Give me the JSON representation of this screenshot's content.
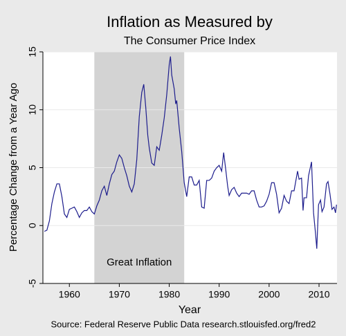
{
  "chart_data": {
    "type": "line",
    "title": "Inflation as Measured by",
    "subtitle": "The Consumer Price Index",
    "x_label": "Year",
    "y_label": "Percentage Change from a Year Ago",
    "source": "Source: Federal Reserve Public Data research.stlouisfed.org/fred2",
    "shaded": {
      "x": [
        1965,
        1983
      ],
      "label": "Great Inflation",
      "color": "#d3d3d3"
    },
    "xlim": [
      1954.7,
      2013.6
    ],
    "xticks": [
      1960,
      1970,
      1980,
      1990,
      2000,
      2010
    ],
    "ylim": [
      -5,
      15
    ],
    "yticks": [
      -5,
      0,
      5,
      10,
      15
    ],
    "grid": true,
    "x": [
      1955.0,
      1955.5,
      1956.0,
      1956.5,
      1957.0,
      1957.5,
      1958.0,
      1958.5,
      1959.0,
      1959.5,
      1960.0,
      1960.5,
      1961.0,
      1961.5,
      1962.0,
      1962.5,
      1963.0,
      1963.5,
      1964.0,
      1964.5,
      1965.0,
      1965.5,
      1966.0,
      1966.5,
      1967.0,
      1967.5,
      1968.0,
      1968.5,
      1969.0,
      1969.5,
      1970.0,
      1970.5,
      1971.0,
      1971.5,
      1972.0,
      1972.5,
      1973.0,
      1973.5,
      1974.0,
      1974.5,
      1974.9,
      1975.3,
      1975.7,
      1976.0,
      1976.5,
      1977.0,
      1977.5,
      1978.0,
      1978.5,
      1979.0,
      1979.5,
      1980.0,
      1980.25,
      1980.5,
      1981.0,
      1981.3,
      1981.5,
      1982.0,
      1982.5,
      1983.0,
      1983.5,
      1984.0,
      1984.5,
      1985.0,
      1985.5,
      1986.0,
      1986.5,
      1987.0,
      1987.5,
      1988.0,
      1988.5,
      1989.0,
      1989.5,
      1990.0,
      1990.5,
      1990.9,
      1991.3,
      1991.7,
      1992.0,
      1992.5,
      1993.0,
      1993.5,
      1994.0,
      1994.5,
      1995.0,
      1995.5,
      1996.0,
      1996.5,
      1997.0,
      1997.5,
      1998.0,
      1998.5,
      1999.0,
      1999.5,
      2000.0,
      2000.5,
      2001.0,
      2001.5,
      2002.0,
      2002.5,
      2003.0,
      2003.5,
      2004.0,
      2004.5,
      2005.0,
      2005.7,
      2006.0,
      2006.5,
      2006.8,
      2007.0,
      2007.5,
      2007.9,
      2008.5,
      2008.9,
      2009.3,
      2009.55,
      2009.9,
      2010.3,
      2010.6,
      2011.0,
      2011.5,
      2011.8,
      2012.2,
      2012.6,
      2013.0,
      2013.3,
      2013.5
    ],
    "series": [
      {
        "name": "CPI",
        "color": "#1c1c8c",
        "values": [
          -0.5,
          -0.4,
          0.4,
          1.9,
          2.9,
          3.6,
          3.6,
          2.5,
          1.0,
          0.7,
          1.4,
          1.5,
          1.6,
          1.2,
          0.7,
          1.1,
          1.3,
          1.3,
          1.6,
          1.2,
          1.0,
          1.7,
          2.2,
          3.0,
          3.4,
          2.6,
          3.6,
          4.4,
          4.7,
          5.5,
          6.1,
          5.8,
          5.0,
          4.3,
          3.4,
          2.9,
          3.6,
          5.7,
          9.4,
          11.5,
          12.2,
          10.2,
          7.8,
          6.7,
          5.4,
          5.2,
          6.8,
          6.5,
          7.8,
          9.3,
          11.3,
          13.9,
          14.6,
          13.0,
          11.8,
          10.5,
          10.8,
          8.4,
          6.4,
          3.7,
          2.5,
          4.2,
          4.2,
          3.5,
          3.5,
          3.9,
          1.6,
          1.5,
          3.9,
          3.9,
          4.1,
          4.7,
          5.0,
          5.2,
          4.7,
          6.3,
          4.9,
          3.4,
          2.6,
          3.1,
          3.3,
          2.8,
          2.5,
          2.8,
          2.8,
          2.8,
          2.7,
          3.0,
          3.0,
          2.2,
          1.6,
          1.6,
          1.7,
          2.1,
          2.7,
          3.7,
          3.7,
          2.7,
          1.1,
          1.5,
          2.6,
          2.1,
          1.9,
          3.0,
          3.0,
          4.7,
          4.0,
          4.1,
          1.3,
          2.4,
          2.4,
          4.3,
          5.5,
          1.1,
          -0.7,
          -2.0,
          1.8,
          2.2,
          1.2,
          1.6,
          3.6,
          3.8,
          2.7,
          1.4,
          1.6,
          1.1,
          1.8
        ]
      }
    ]
  }
}
